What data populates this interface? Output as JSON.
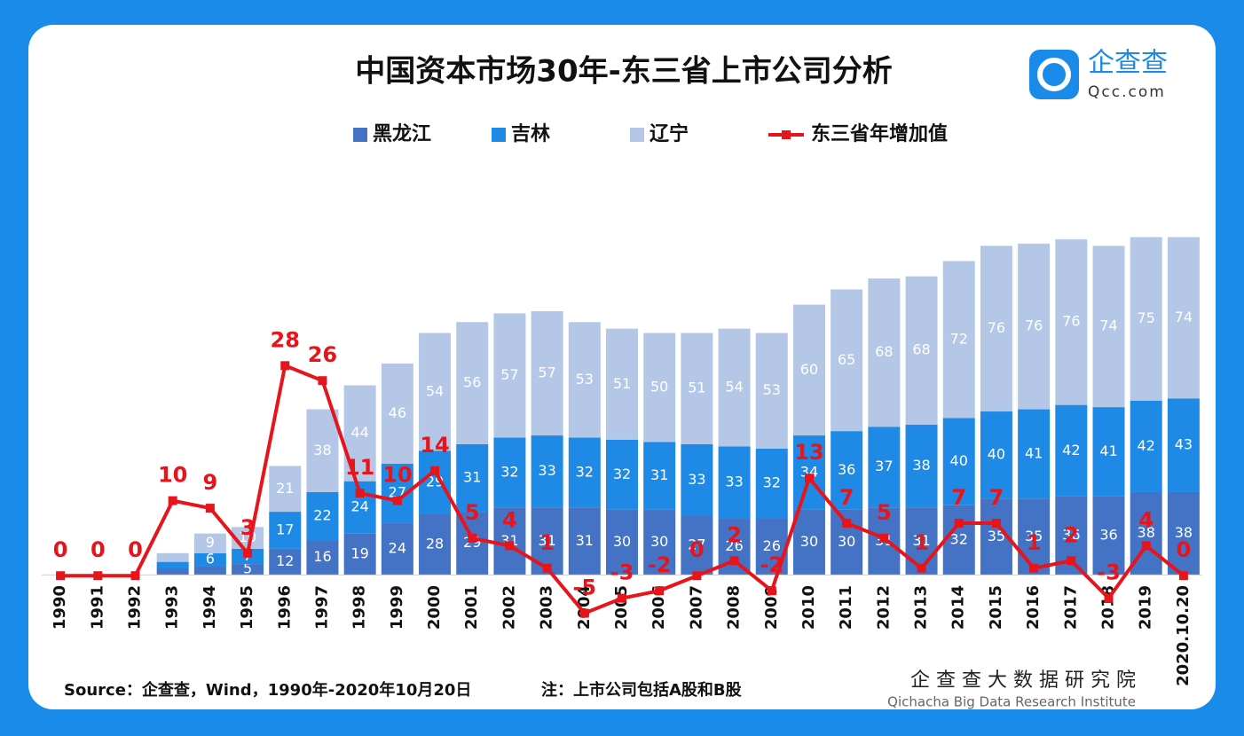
{
  "chart_data": {
    "type": "bar",
    "stacked": true,
    "title": "中国资本市场30年-东三省上市公司分析",
    "logo": {
      "name": "企查查",
      "site": "Qcc.com"
    },
    "categories": [
      "1990",
      "1991",
      "1992",
      "1993",
      "1994",
      "1995",
      "1996",
      "1997",
      "1998",
      "1999",
      "2000",
      "2001",
      "2002",
      "2003",
      "2004",
      "2005",
      "2006",
      "2007",
      "2008",
      "2009",
      "2010",
      "2011",
      "2012",
      "2013",
      "2014",
      "2015",
      "2016",
      "2017",
      "2018",
      "2019",
      "2020.10.20"
    ],
    "series": [
      {
        "name": "黑龙江",
        "color": "#4472c4",
        "values": [
          0,
          0,
          0,
          3,
          4,
          5,
          12,
          16,
          19,
          24,
          28,
          29,
          31,
          31,
          31,
          30,
          30,
          27,
          26,
          26,
          30,
          30,
          31,
          31,
          32,
          35,
          35,
          36,
          36,
          38,
          38
        ]
      },
      {
        "name": "吉林",
        "color": "#1f8ae6",
        "values": [
          0,
          0,
          0,
          3,
          6,
          7,
          17,
          22,
          24,
          27,
          29,
          31,
          32,
          33,
          32,
          32,
          31,
          33,
          33,
          32,
          34,
          36,
          37,
          38,
          40,
          40,
          41,
          42,
          41,
          42,
          43
        ]
      },
      {
        "name": "辽宁",
        "color": "#b4c7e7",
        "values": [
          0,
          0,
          0,
          4,
          9,
          10,
          21,
          38,
          44,
          46,
          54,
          56,
          57,
          57,
          53,
          51,
          50,
          51,
          54,
          53,
          60,
          65,
          68,
          68,
          72,
          76,
          76,
          76,
          74,
          75,
          74
        ]
      },
      {
        "name": "东三省年增加值",
        "type": "line",
        "axis": "y2",
        "color": "#e8141b",
        "values": [
          0,
          0,
          0,
          10,
          9,
          3,
          28,
          26,
          11,
          10,
          14,
          5,
          4,
          1,
          -5,
          -3,
          -2,
          0,
          2,
          -2,
          13,
          7,
          5,
          1,
          7,
          7,
          1,
          2,
          -3,
          4,
          0
        ]
      }
    ],
    "ylim": [
      -21,
      158
    ],
    "y2lim": [
      -6,
      46
    ],
    "legend": "top",
    "source": "Source：企查查，Wind，1990年-2020年10月20日",
    "note": "注：上市公司包括A股和B股",
    "institute": "企 查 查 大 数 据 研 究 院",
    "institute_en": "Qichacha Big Data Research Institute"
  }
}
